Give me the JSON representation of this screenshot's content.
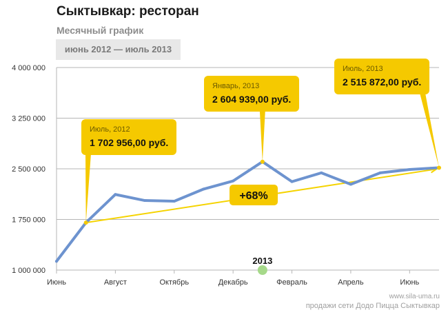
{
  "header": {
    "title": "Сыктывкар: ресторан",
    "subtitle": "Месячный график",
    "period": "июнь 2012 — июль 2013"
  },
  "footer": {
    "site": "www.sila-uma.ru",
    "caption": "продажи сети Додо Пицца Сыктывкар"
  },
  "colors": {
    "line": "#6d93cf",
    "trend": "#f5d300",
    "callout": "#f5c900",
    "grid": "#b5b5b5",
    "year_marker": "#a6d98a"
  },
  "chart_data": {
    "type": "line",
    "x": [
      "2012-06",
      "2012-07",
      "2012-08",
      "2012-09",
      "2012-10",
      "2012-11",
      "2012-12",
      "2013-01",
      "2013-02",
      "2013-03",
      "2013-04",
      "2013-05",
      "2013-06",
      "2013-07"
    ],
    "series": [
      {
        "values": [
          1130000,
          1702956,
          2120000,
          2030000,
          2020000,
          2200000,
          2320000,
          2604939,
          2310000,
          2440000,
          2270000,
          2440000,
          2490000,
          2515872
        ]
      }
    ],
    "trend": {
      "from": "2012-07",
      "to": "2013-07"
    },
    "ylim": [
      1000000,
      4000000
    ],
    "yticks": [
      "1 000 000",
      "1 750 000",
      "2 500 000",
      "3 250 000",
      "4 000 000"
    ],
    "ytick_values": [
      1000000,
      1750000,
      2500000,
      3250000,
      4000000
    ],
    "xticks": [
      {
        "at": "2012-06",
        "label": "Июнь"
      },
      {
        "at": "2012-08",
        "label": "Август"
      },
      {
        "at": "2012-10",
        "label": "Октябрь"
      },
      {
        "at": "2012-12",
        "label": "Декабрь"
      },
      {
        "at": "2013-02",
        "label": "Февраль"
      },
      {
        "at": "2013-04",
        "label": "Апрель"
      },
      {
        "at": "2013-06",
        "label": "Июнь"
      }
    ],
    "grid": "horizontal",
    "year_marker": {
      "at": "2013-01",
      "label": "2013"
    },
    "growth_label": "+68%",
    "callouts": [
      {
        "at": "2012-07",
        "month": "Июль, 2012",
        "value": "1 702 956,00 руб."
      },
      {
        "at": "2013-01",
        "month": "Январь, 2013",
        "value": "2 604 939,00 руб."
      },
      {
        "at": "2013-07",
        "month": "Июль, 2013",
        "value": "2 515 872,00 руб."
      }
    ]
  }
}
